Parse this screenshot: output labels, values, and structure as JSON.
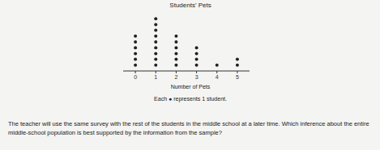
{
  "chart_data": {
    "type": "dot",
    "title": "Students' Pets",
    "x_label": "Number of Pets",
    "annotation": "Each ● represents 1 student.",
    "x": [
      0,
      1,
      2,
      3,
      4,
      5
    ],
    "values": [
      6,
      9,
      6,
      4,
      1,
      2
    ],
    "xlim": [
      -0.6,
      5.6
    ],
    "xticks": [
      0,
      1,
      2,
      3,
      4,
      5
    ],
    "color": "#222222",
    "marker": "circle",
    "tick_labels": "x"
  },
  "question": "The teacher will use the same survey with the rest of the students in the middle school at a later time. Which inference about the entire middle-school population is best supported by the information from the sample?"
}
